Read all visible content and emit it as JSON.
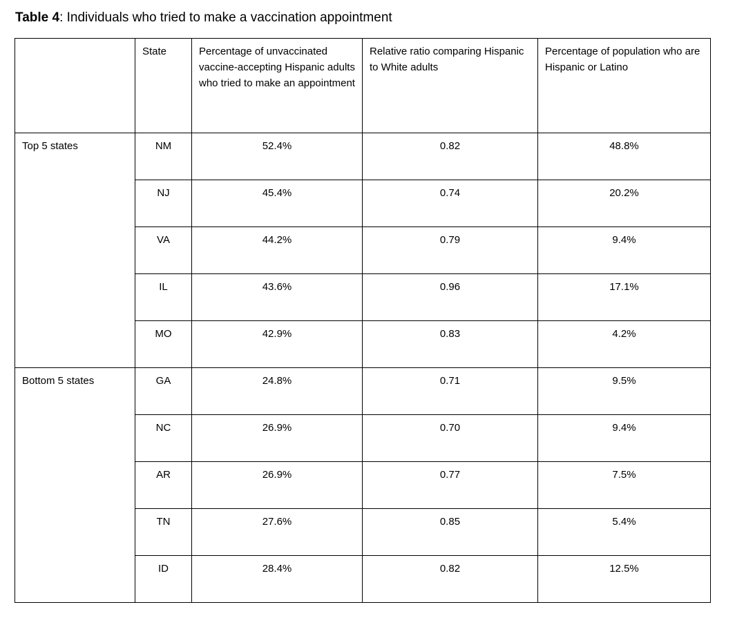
{
  "caption": {
    "label": "Table 4",
    "text": ": Individuals who tried to make a vaccination appointment"
  },
  "table": {
    "columns": [
      "",
      "State",
      "Percentage of unvaccinated vaccine-accepting Hispanic adults who tried to make an appointment",
      "Relative ratio comparing Hispanic to White adults",
      "Percentage of population who are Hispanic or Latino"
    ],
    "groups": [
      {
        "label": "Top 5 states",
        "rows": [
          {
            "state": "NM",
            "pct_tried": "52.4%",
            "ratio": "0.82",
            "pct_pop": "48.8%"
          },
          {
            "state": "NJ",
            "pct_tried": "45.4%",
            "ratio": "0.74",
            "pct_pop": "20.2%"
          },
          {
            "state": "VA",
            "pct_tried": "44.2%",
            "ratio": "0.79",
            "pct_pop": "9.4%"
          },
          {
            "state": "IL",
            "pct_tried": "43.6%",
            "ratio": "0.96",
            "pct_pop": "17.1%"
          },
          {
            "state": "MO",
            "pct_tried": "42.9%",
            "ratio": "0.83",
            "pct_pop": "4.2%"
          }
        ]
      },
      {
        "label": "Bottom 5 states",
        "rows": [
          {
            "state": "GA",
            "pct_tried": "24.8%",
            "ratio": "0.71",
            "pct_pop": "9.5%"
          },
          {
            "state": "NC",
            "pct_tried": "26.9%",
            "ratio": "0.70",
            "pct_pop": "9.4%"
          },
          {
            "state": "AR",
            "pct_tried": "26.9%",
            "ratio": "0.77",
            "pct_pop": "7.5%"
          },
          {
            "state": "TN",
            "pct_tried": "27.6%",
            "ratio": "0.85",
            "pct_pop": "5.4%"
          },
          {
            "state": "ID",
            "pct_tried": "28.4%",
            "ratio": "0.82",
            "pct_pop": "12.5%"
          }
        ]
      }
    ]
  },
  "colors": {
    "text": "#000000",
    "border": "#000000",
    "background": "#ffffff"
  }
}
